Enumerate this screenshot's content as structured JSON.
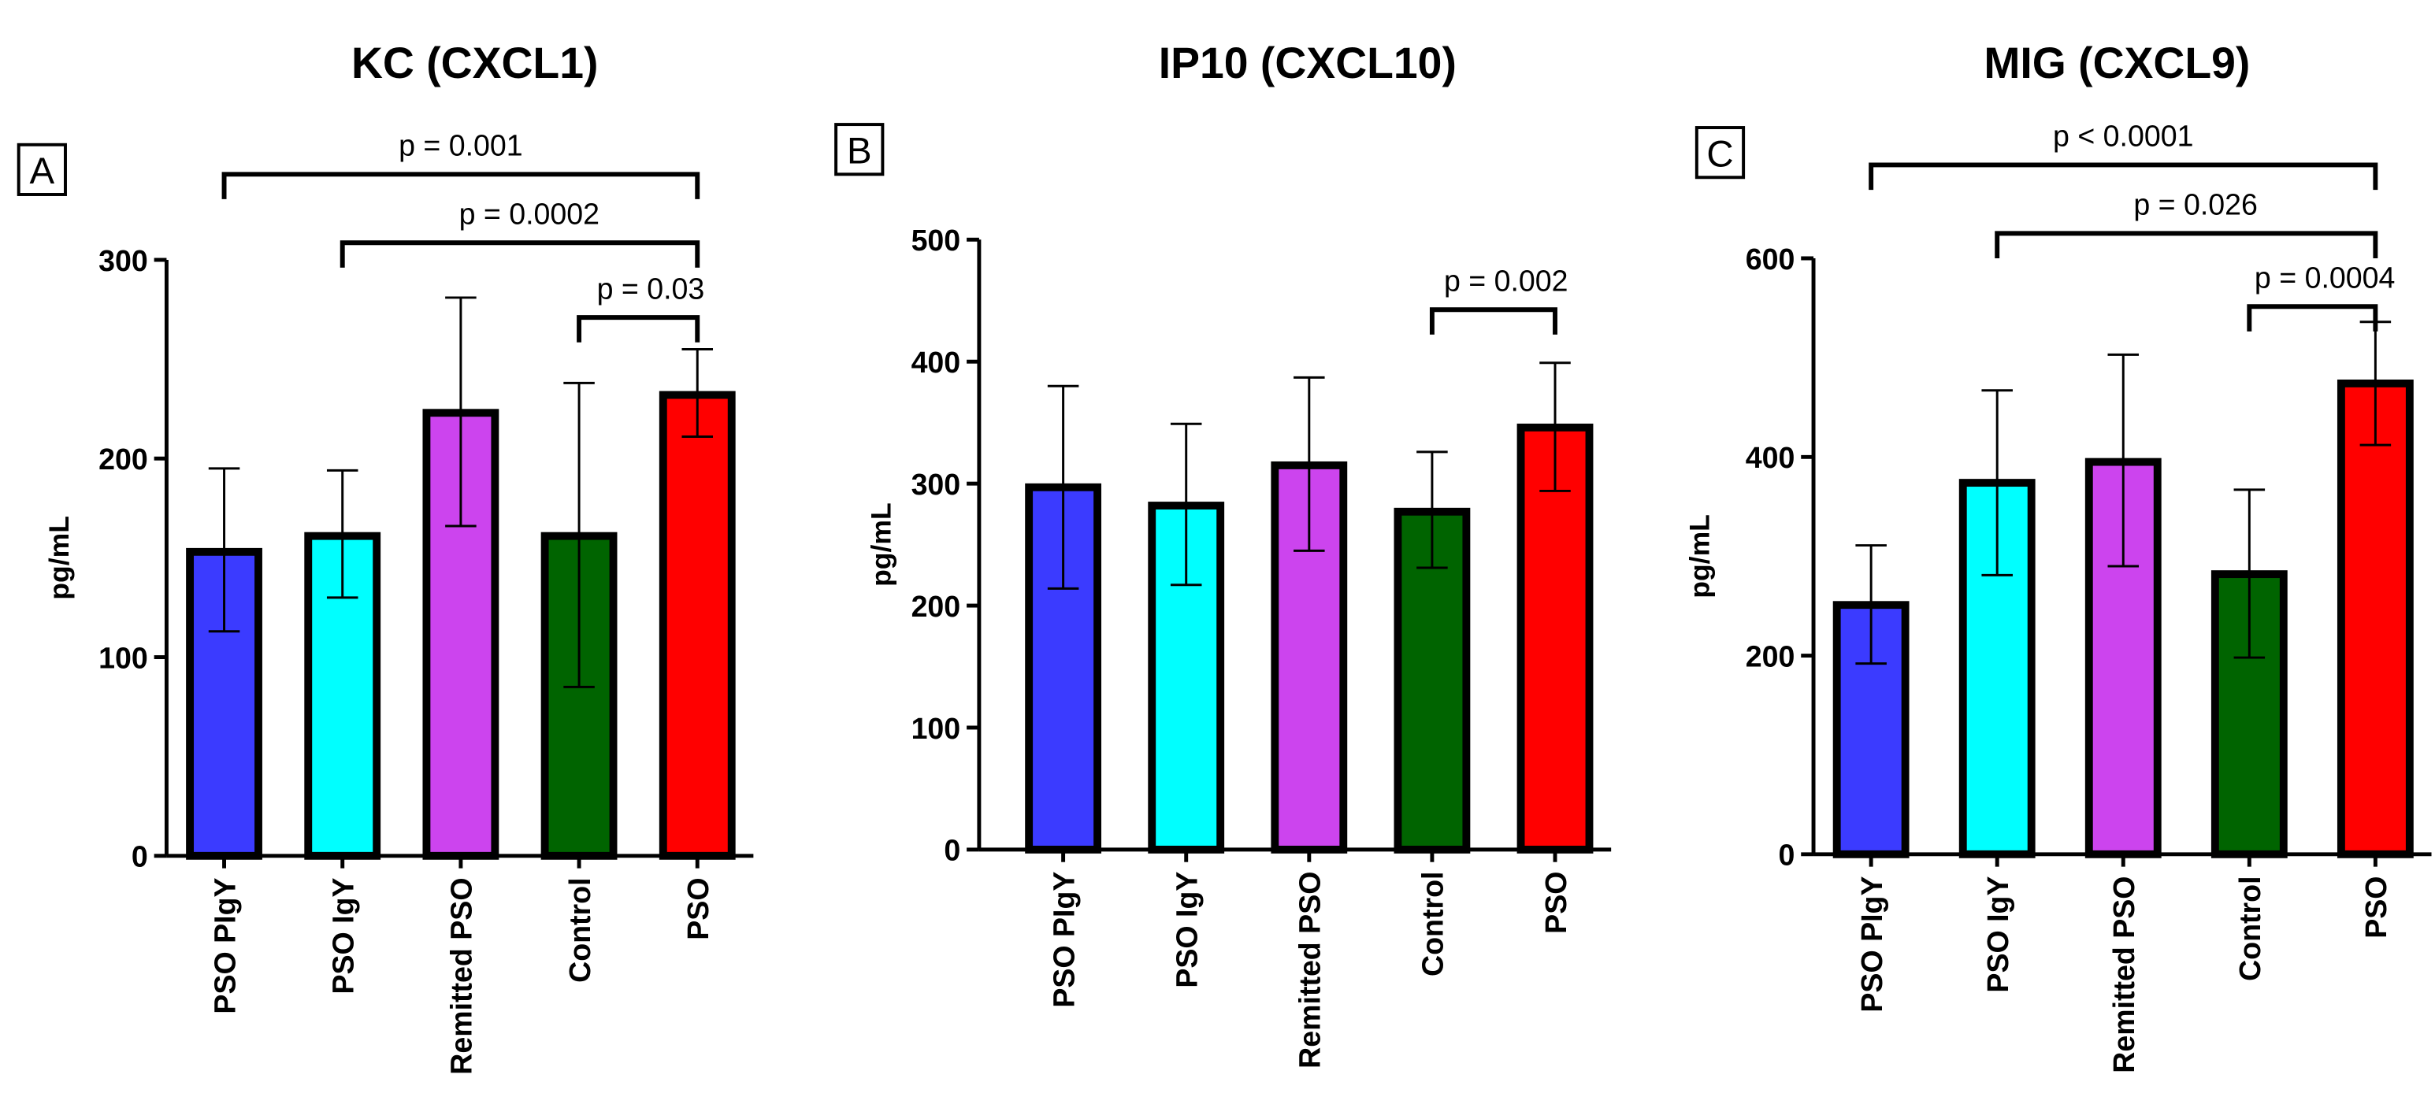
{
  "chart_data": [
    {
      "type": "bar",
      "panel": "A",
      "title": "KC (CXCL1)",
      "ylabel": "pg/mL",
      "xlabel": "",
      "ylim": [
        0,
        300
      ],
      "yticks": [
        "0",
        "100",
        "200",
        "300"
      ],
      "categories": [
        "PSO PIgY",
        "PSO IgY",
        "Remitted PSO",
        "Control",
        "PSO"
      ],
      "values": [
        153,
        161,
        223,
        161,
        232
      ],
      "error_upper": [
        195,
        194,
        281,
        238,
        255
      ],
      "error_lower": [
        113,
        130,
        166,
        85,
        211
      ],
      "colors": [
        "#3b3bff",
        "#00ffff",
        "#cc44ee",
        "#006400",
        "#ff0000"
      ],
      "comparisons": [
        {
          "from": 0,
          "to": 4,
          "label": "p = 0.001"
        },
        {
          "from": 1,
          "to": 4,
          "label": "p = 0.0002"
        },
        {
          "from": 3,
          "to": 4,
          "label": "p = 0.03"
        }
      ]
    },
    {
      "type": "bar",
      "panel": "B",
      "title": "IP10 (CXCL10)",
      "ylabel": "pg/mL",
      "xlabel": "",
      "ylim": [
        0,
        500
      ],
      "yticks": [
        "0",
        "100",
        "200",
        "300",
        "400",
        "500"
      ],
      "categories": [
        "PSO PIgY",
        "PSO IgY",
        "Remitted PSO",
        "Control",
        "PSO"
      ],
      "values": [
        297,
        282,
        315,
        277,
        346
      ],
      "error_upper": [
        380,
        349,
        387,
        326,
        399
      ],
      "error_lower": [
        214,
        217,
        245,
        231,
        294
      ],
      "colors": [
        "#3b3bff",
        "#00ffff",
        "#cc44ee",
        "#006400",
        "#ff0000"
      ],
      "comparisons": [
        {
          "from": 3,
          "to": 4,
          "label": "p = 0.002"
        }
      ]
    },
    {
      "type": "bar",
      "panel": "C",
      "title": "MIG (CXCL9)",
      "ylabel": "pg/mL",
      "xlabel": "",
      "ylim": [
        0,
        600
      ],
      "yticks": [
        "0",
        "200",
        "400",
        "600"
      ],
      "categories": [
        "PSO PIgY",
        "PSO IgY",
        "Remitted PSO",
        "Control",
        "PSO"
      ],
      "values": [
        251,
        374,
        395,
        282,
        474
      ],
      "error_upper": [
        311,
        467,
        503,
        367,
        536
      ],
      "error_lower": [
        192,
        281,
        290,
        198,
        412
      ],
      "colors": [
        "#3b3bff",
        "#00ffff",
        "#cc44ee",
        "#006400",
        "#ff0000"
      ],
      "comparisons": [
        {
          "from": 0,
          "to": 4,
          "label": "p < 0.0001"
        },
        {
          "from": 1,
          "to": 4,
          "label": "p = 0.026"
        },
        {
          "from": 3,
          "to": 4,
          "label": "p = 0.0004"
        }
      ]
    }
  ]
}
